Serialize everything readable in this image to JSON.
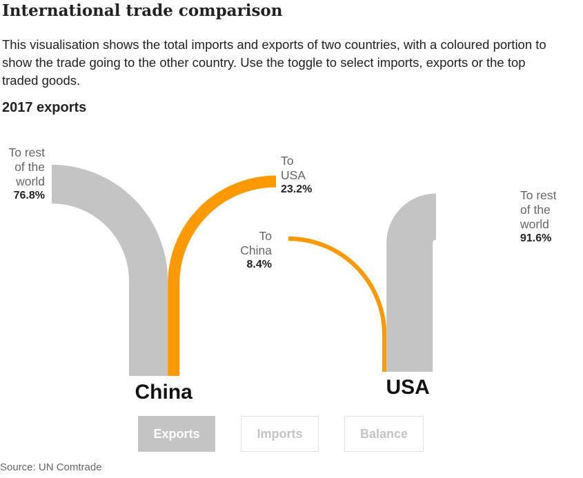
{
  "title": "International trade comparison",
  "description": "This visualisation shows the total imports and exports of two countries, with a coloured portion to show the trade going to the other country. Use the toggle to select imports, exports or the top traded goods.",
  "subtitle": "2017 exports",
  "colors": {
    "rest": "#c4c4c4",
    "partner": "#ff9900"
  },
  "chart_data": {
    "type": "flow",
    "year": 2017,
    "mode": "exports",
    "countries": [
      {
        "name": "China",
        "flows": [
          {
            "label_lines": [
              "To rest",
              "of the",
              "world"
            ],
            "value": 76.8,
            "value_label": "76.8%",
            "kind": "rest"
          },
          {
            "label_lines": [
              "To",
              "USA"
            ],
            "value": 23.2,
            "value_label": "23.2%",
            "kind": "partner"
          }
        ]
      },
      {
        "name": "USA",
        "flows": [
          {
            "label_lines": [
              "To",
              "China"
            ],
            "value": 8.4,
            "value_label": "8.4%",
            "kind": "partner"
          },
          {
            "label_lines": [
              "To rest",
              "of the",
              "world"
            ],
            "value": 91.6,
            "value_label": "91.6%",
            "kind": "rest"
          }
        ]
      }
    ]
  },
  "toggles": [
    {
      "label": "Exports",
      "active": true
    },
    {
      "label": "Imports",
      "active": false
    },
    {
      "label": "Balance",
      "active": false
    }
  ],
  "source": "Source: UN Comtrade"
}
